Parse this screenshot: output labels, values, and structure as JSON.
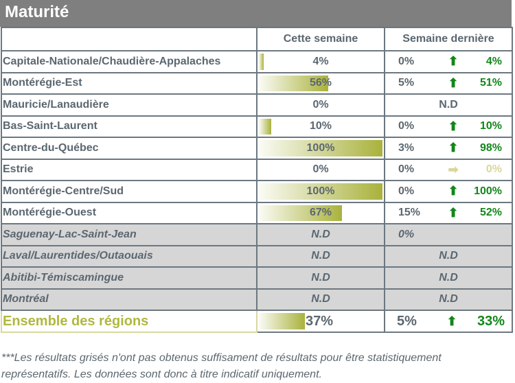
{
  "title": "Maturité",
  "headers": {
    "region": "",
    "this_week": "Cette semaine",
    "last_week": "Semaine dernière"
  },
  "colors": {
    "bar": "#a9b23c",
    "up": "#12861a",
    "neutral": "#d8d79a",
    "grey_row": "#d6d6d6",
    "text": "#5b6770",
    "title_bg": "#7f7f7f"
  },
  "rows": [
    {
      "region": "Capitale-Nationale/Chaudière-Appalaches",
      "this_week": "4%",
      "bar_pct": 4,
      "last_week": "0%",
      "trend_icon": "arrow-up",
      "delta": "4%",
      "greyed": false
    },
    {
      "region": "Montérégie-Est",
      "this_week": "56%",
      "bar_pct": 56,
      "last_week": "5%",
      "trend_icon": "arrow-up",
      "delta": "51%",
      "greyed": false
    },
    {
      "region": "Mauricie/Lanaudière",
      "this_week": "0%",
      "bar_pct": 0,
      "last_week": "N.D",
      "trend_icon": "",
      "delta": "",
      "greyed": false
    },
    {
      "region": "Bas-Saint-Laurent",
      "this_week": "10%",
      "bar_pct": 10,
      "last_week": "0%",
      "trend_icon": "arrow-up",
      "delta": "10%",
      "greyed": false
    },
    {
      "region": "Centre-du-Québec",
      "this_week": "100%",
      "bar_pct": 100,
      "last_week": "3%",
      "trend_icon": "arrow-up",
      "delta": "98%",
      "greyed": false
    },
    {
      "region": "Estrie",
      "this_week": "0%",
      "bar_pct": 0,
      "last_week": "0%",
      "trend_icon": "arrow-right",
      "delta": "0%",
      "greyed": false
    },
    {
      "region": "Montérégie-Centre/Sud",
      "this_week": "100%",
      "bar_pct": 100,
      "last_week": "0%",
      "trend_icon": "arrow-up",
      "delta": "100%",
      "greyed": false
    },
    {
      "region": "Montérégie-Ouest",
      "this_week": "67%",
      "bar_pct": 67,
      "last_week": "15%",
      "trend_icon": "arrow-up",
      "delta": "52%",
      "greyed": false
    },
    {
      "region": "Saguenay-Lac-Saint-Jean",
      "this_week": "N.D",
      "bar_pct": 0,
      "last_week": "0%",
      "trend_icon": "",
      "delta": "",
      "greyed": true
    },
    {
      "region": "Laval/Laurentides/Outaouais",
      "this_week": "N.D",
      "bar_pct": 0,
      "last_week": "N.D",
      "trend_icon": "",
      "delta": "",
      "greyed": true
    },
    {
      "region": "Abitibi-Témiscamingue",
      "this_week": "N.D",
      "bar_pct": 0,
      "last_week": "N.D",
      "trend_icon": "",
      "delta": "",
      "greyed": true
    },
    {
      "region": "Montréal",
      "this_week": "N.D",
      "bar_pct": 0,
      "last_week": "N.D",
      "trend_icon": "",
      "delta": "",
      "greyed": true
    }
  ],
  "total": {
    "region": "Ensemble des régions",
    "this_week": "37%",
    "bar_pct": 37,
    "last_week": "5%",
    "trend_icon": "arrow-up",
    "delta": "33%"
  },
  "footnote": "***Les résultats grisés n'ont pas obtenus suffisament de résultats pour être statistiquement représentatifs. Les données sont donc à titre indicatif uniquement."
}
